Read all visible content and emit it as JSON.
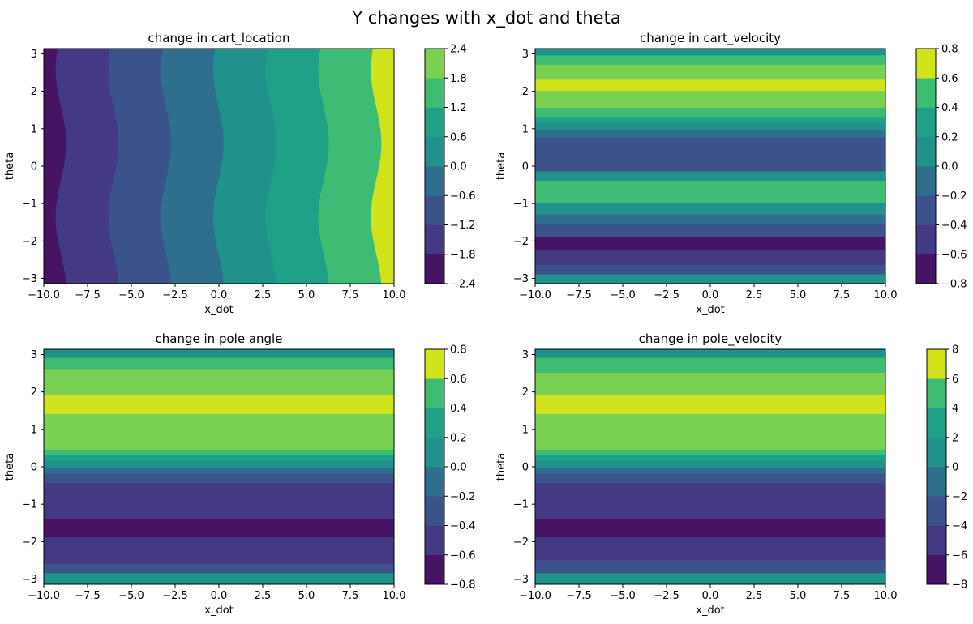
{
  "figure": {
    "title": "Y changes with x_dot and theta"
  },
  "palette": [
    "#471365",
    "#443983",
    "#3b528b",
    "#2e6f8e",
    "#21918c",
    "#1fa187",
    "#3fbc73",
    "#7ad151",
    "#d2e21b"
  ],
  "chart_data": [
    {
      "type": "heatmap",
      "title": "change in cart_location",
      "xlabel": "x_dot",
      "ylabel": "theta",
      "xlim": [
        -10.0,
        10.0
      ],
      "ylim": [
        -3.14,
        3.14
      ],
      "xticks": [
        "−10.0",
        "−7.5",
        "−5.0",
        "−2.5",
        "0.0",
        "2.5",
        "5.0",
        "7.5",
        "10.0"
      ],
      "xtick_values": [
        -10,
        -7.5,
        -5,
        -2.5,
        0,
        2.5,
        5,
        7.5,
        10
      ],
      "yticks": [
        "3",
        "2",
        "1",
        "0",
        "−1",
        "−2",
        "−3"
      ],
      "ytick_values": [
        3,
        2,
        1,
        0,
        -1,
        -2,
        -3
      ],
      "orientation": "vertical-bands",
      "band_direction": "x",
      "wave_amplitude": 0.3,
      "bands": [
        {
          "from": -10.0,
          "to": -9.0,
          "level": 0
        },
        {
          "from": -9.0,
          "to": -6.0,
          "level": 1
        },
        {
          "from": -6.0,
          "to": -3.0,
          "level": 2
        },
        {
          "from": -3.0,
          "to": 0.0,
          "level": 3
        },
        {
          "from": 0.0,
          "to": 3.0,
          "level": 4
        },
        {
          "from": 3.0,
          "to": 6.0,
          "level": 5
        },
        {
          "from": 6.0,
          "to": 9.0,
          "level": 6
        },
        {
          "from": 9.0,
          "to": 10.0,
          "level": 8
        }
      ],
      "colorbar_ticks": [
        "2.4",
        "1.8",
        "1.2",
        "0.6",
        "0.0",
        "−0.6",
        "−1.2",
        "−1.8",
        "−2.4"
      ],
      "colorbar_levels": [
        0,
        1,
        2,
        3,
        4,
        5,
        6,
        7
      ]
    },
    {
      "type": "heatmap",
      "title": "change in cart_velocity",
      "xlabel": "x_dot",
      "ylabel": "theta",
      "xlim": [
        -10.0,
        10.0
      ],
      "ylim": [
        -3.14,
        3.14
      ],
      "xticks": [
        "−10.0",
        "−7.5",
        "−5.0",
        "−2.5",
        "0.0",
        "2.5",
        "5.0",
        "7.5",
        "10.0"
      ],
      "xtick_values": [
        -10,
        -7.5,
        -5,
        -2.5,
        0,
        2.5,
        5,
        7.5,
        10
      ],
      "yticks": [
        "3",
        "2",
        "1",
        "0",
        "−1",
        "−2",
        "−3"
      ],
      "ytick_values": [
        3,
        2,
        1,
        0,
        -1,
        -2,
        -3
      ],
      "orientation": "horizontal-bands",
      "band_direction": "y",
      "wave_amplitude": 0,
      "bands": [
        {
          "from": 2.95,
          "to": 3.14,
          "level": 4
        },
        {
          "from": 2.7,
          "to": 2.95,
          "level": 6
        },
        {
          "from": 2.3,
          "to": 2.7,
          "level": 7
        },
        {
          "from": 2.0,
          "to": 2.3,
          "level": 8
        },
        {
          "from": 1.55,
          "to": 2.0,
          "level": 7
        },
        {
          "from": 1.3,
          "to": 1.55,
          "level": 6
        },
        {
          "from": 1.15,
          "to": 1.3,
          "level": 5
        },
        {
          "from": 0.95,
          "to": 1.15,
          "level": 4
        },
        {
          "from": 0.75,
          "to": 0.95,
          "level": 3
        },
        {
          "from": -0.15,
          "to": 0.75,
          "level": 2
        },
        {
          "from": -0.4,
          "to": -0.15,
          "level": 4
        },
        {
          "from": -1.0,
          "to": -0.4,
          "level": 6
        },
        {
          "from": -1.3,
          "to": -1.0,
          "level": 4
        },
        {
          "from": -1.55,
          "to": -1.3,
          "level": 3
        },
        {
          "from": -1.9,
          "to": -1.55,
          "level": 2
        },
        {
          "from": -2.25,
          "to": -1.9,
          "level": 0
        },
        {
          "from": -2.65,
          "to": -2.25,
          "level": 1
        },
        {
          "from": -2.9,
          "to": -2.65,
          "level": 2
        },
        {
          "from": -3.14,
          "to": -2.9,
          "level": 4
        }
      ],
      "colorbar_ticks": [
        "0.8",
        "0.6",
        "0.4",
        "0.2",
        "0.0",
        "−0.2",
        "−0.4",
        "−0.6",
        "−0.8"
      ],
      "colorbar_levels": [
        0,
        1,
        2,
        3,
        4,
        5,
        6,
        8
      ]
    },
    {
      "type": "heatmap",
      "title": "change in pole angle",
      "xlabel": "x_dot",
      "ylabel": "theta",
      "xlim": [
        -10.0,
        10.0
      ],
      "ylim": [
        -3.14,
        3.14
      ],
      "xticks": [
        "−10.0",
        "−7.5",
        "−5.0",
        "−2.5",
        "0.0",
        "2.5",
        "5.0",
        "7.5",
        "10.0"
      ],
      "xtick_values": [
        -10,
        -7.5,
        -5,
        -2.5,
        0,
        2.5,
        5,
        7.5,
        10
      ],
      "yticks": [
        "3",
        "2",
        "1",
        "0",
        "−1",
        "−2",
        "−3"
      ],
      "ytick_values": [
        3,
        2,
        1,
        0,
        -1,
        -2,
        -3
      ],
      "orientation": "horizontal-bands",
      "band_direction": "y",
      "wave_amplitude": 0,
      "bands": [
        {
          "from": 2.9,
          "to": 3.14,
          "level": 4
        },
        {
          "from": 2.6,
          "to": 2.9,
          "level": 6
        },
        {
          "from": 1.9,
          "to": 2.6,
          "level": 7
        },
        {
          "from": 1.4,
          "to": 1.9,
          "level": 8
        },
        {
          "from": 0.45,
          "to": 1.4,
          "level": 7
        },
        {
          "from": 0.3,
          "to": 0.45,
          "level": 6
        },
        {
          "from": 0.15,
          "to": 0.3,
          "level": 5
        },
        {
          "from": -0.05,
          "to": 0.15,
          "level": 4
        },
        {
          "from": -0.2,
          "to": -0.05,
          "level": 3
        },
        {
          "from": -0.45,
          "to": -0.2,
          "level": 2
        },
        {
          "from": -1.4,
          "to": -0.45,
          "level": 1
        },
        {
          "from": -1.9,
          "to": -1.4,
          "level": 0
        },
        {
          "from": -2.6,
          "to": -1.9,
          "level": 1
        },
        {
          "from": -2.85,
          "to": -2.6,
          "level": 2
        },
        {
          "from": -3.14,
          "to": -2.85,
          "level": 4
        }
      ],
      "colorbar_ticks": [
        "0.8",
        "0.6",
        "0.4",
        "0.2",
        "0.0",
        "−0.2",
        "−0.4",
        "−0.6",
        "−0.8"
      ],
      "colorbar_levels": [
        0,
        1,
        2,
        3,
        4,
        5,
        6,
        8
      ]
    },
    {
      "type": "heatmap",
      "title": "change in pole_velocity",
      "xlabel": "x_dot",
      "ylabel": "theta",
      "xlim": [
        -10.0,
        10.0
      ],
      "ylim": [
        -3.14,
        3.14
      ],
      "xticks": [
        "−10.0",
        "−7.5",
        "−5.0",
        "−2.5",
        "0.0",
        "2.5",
        "5.0",
        "7.5",
        "10.0"
      ],
      "xtick_values": [
        -10,
        -7.5,
        -5,
        -2.5,
        0,
        2.5,
        5,
        7.5,
        10
      ],
      "yticks": [
        "3",
        "2",
        "1",
        "0",
        "−1",
        "−2",
        "−3"
      ],
      "ytick_values": [
        3,
        2,
        1,
        0,
        -1,
        -2,
        -3
      ],
      "orientation": "horizontal-bands",
      "band_direction": "y",
      "wave_amplitude": 0,
      "bands": [
        {
          "from": 2.9,
          "to": 3.14,
          "level": 4
        },
        {
          "from": 2.5,
          "to": 2.9,
          "level": 6
        },
        {
          "from": 1.9,
          "to": 2.5,
          "level": 7
        },
        {
          "from": 1.4,
          "to": 1.9,
          "level": 8
        },
        {
          "from": 0.45,
          "to": 1.4,
          "level": 7
        },
        {
          "from": 0.3,
          "to": 0.45,
          "level": 6
        },
        {
          "from": 0.15,
          "to": 0.3,
          "level": 5
        },
        {
          "from": -0.05,
          "to": 0.15,
          "level": 4
        },
        {
          "from": -0.2,
          "to": -0.05,
          "level": 3
        },
        {
          "from": -0.45,
          "to": -0.2,
          "level": 2
        },
        {
          "from": -1.4,
          "to": -0.45,
          "level": 1
        },
        {
          "from": -1.9,
          "to": -1.4,
          "level": 0
        },
        {
          "from": -2.5,
          "to": -1.9,
          "level": 1
        },
        {
          "from": -2.85,
          "to": -2.5,
          "level": 2
        },
        {
          "from": -3.14,
          "to": -2.85,
          "level": 4
        }
      ],
      "colorbar_ticks": [
        "8",
        "6",
        "4",
        "2",
        "0",
        "−2",
        "−4",
        "−6",
        "−8"
      ],
      "colorbar_levels": [
        0,
        1,
        2,
        3,
        4,
        5,
        6,
        8
      ]
    }
  ]
}
